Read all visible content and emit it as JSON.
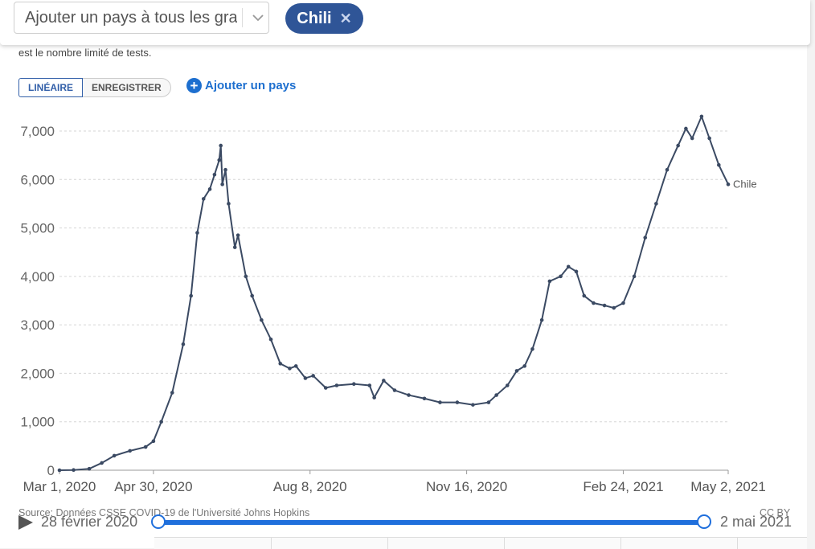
{
  "controls": {
    "country_select_placeholder": "Ajouter un pays à tous les graphiques",
    "selected_country": "Chili",
    "remove_symbol": "✕",
    "note": "est le nombre limité de tests.",
    "scale_linear": "LINÉAIRE",
    "scale_log": "ENREGISTRER",
    "add_country": "Ajouter un pays",
    "add_icon": "plus-circle-icon"
  },
  "footer": {
    "source": "Source: Données CSSE COVID-19 de l'Université Johns Hopkins",
    "license": "CC BY"
  },
  "timeline": {
    "start_label": "28 février 2020",
    "end_label": "2 mai 2021",
    "start_fraction": 0,
    "end_fraction": 1
  },
  "chart_data": {
    "type": "line",
    "title": "",
    "xlabel": "",
    "ylabel": "",
    "x_range": [
      "2020-03-01",
      "2021-05-02"
    ],
    "ylim": [
      0,
      7000
    ],
    "y_ticks": [
      0,
      1000,
      2000,
      3000,
      4000,
      5000,
      6000,
      7000
    ],
    "y_tick_labels": [
      "0",
      "1,000",
      "2,000",
      "3,000",
      "4,000",
      "5,000",
      "6,000",
      "7,000"
    ],
    "x_ticks": [
      "2020-03-01",
      "2020-04-30",
      "2020-08-08",
      "2020-11-16",
      "2021-02-24",
      "2021-05-02"
    ],
    "x_tick_labels": [
      "Mar 1, 2020",
      "Apr 30, 2020",
      "Aug 8, 2020",
      "Nov 16, 2020",
      "Feb 24, 2021",
      "May 2, 2021"
    ],
    "grid": "horizontal dashed",
    "line_color": "#3b4a63",
    "series": [
      {
        "name": "Chile",
        "points": [
          [
            "2020-03-01",
            0
          ],
          [
            "2020-03-10",
            5
          ],
          [
            "2020-03-20",
            30
          ],
          [
            "2020-03-28",
            150
          ],
          [
            "2020-04-05",
            300
          ],
          [
            "2020-04-15",
            400
          ],
          [
            "2020-04-25",
            480
          ],
          [
            "2020-04-30",
            600
          ],
          [
            "2020-05-05",
            1000
          ],
          [
            "2020-05-12",
            1600
          ],
          [
            "2020-05-19",
            2600
          ],
          [
            "2020-05-24",
            3600
          ],
          [
            "2020-05-28",
            4900
          ],
          [
            "2020-06-01",
            5600
          ],
          [
            "2020-06-05",
            5800
          ],
          [
            "2020-06-08",
            6100
          ],
          [
            "2020-06-11",
            6400
          ],
          [
            "2020-06-12",
            6700
          ],
          [
            "2020-06-13",
            5900
          ],
          [
            "2020-06-15",
            6200
          ],
          [
            "2020-06-17",
            5500
          ],
          [
            "2020-06-21",
            4600
          ],
          [
            "2020-06-23",
            4850
          ],
          [
            "2020-06-28",
            4000
          ],
          [
            "2020-07-02",
            3600
          ],
          [
            "2020-07-08",
            3100
          ],
          [
            "2020-07-14",
            2700
          ],
          [
            "2020-07-20",
            2200
          ],
          [
            "2020-07-26",
            2100
          ],
          [
            "2020-07-30",
            2150
          ],
          [
            "2020-08-05",
            1900
          ],
          [
            "2020-08-10",
            1950
          ],
          [
            "2020-08-18",
            1700
          ],
          [
            "2020-08-25",
            1750
          ],
          [
            "2020-09-05",
            1780
          ],
          [
            "2020-09-15",
            1750
          ],
          [
            "2020-09-18",
            1500
          ],
          [
            "2020-09-24",
            1850
          ],
          [
            "2020-10-01",
            1650
          ],
          [
            "2020-10-10",
            1550
          ],
          [
            "2020-10-20",
            1480
          ],
          [
            "2020-10-30",
            1400
          ],
          [
            "2020-11-10",
            1400
          ],
          [
            "2020-11-20",
            1350
          ],
          [
            "2020-11-30",
            1400
          ],
          [
            "2020-12-05",
            1550
          ],
          [
            "2020-12-12",
            1750
          ],
          [
            "2020-12-18",
            2050
          ],
          [
            "2020-12-23",
            2150
          ],
          [
            "2020-12-28",
            2500
          ],
          [
            "2021-01-03",
            3100
          ],
          [
            "2021-01-08",
            3900
          ],
          [
            "2021-01-15",
            4000
          ],
          [
            "2021-01-20",
            4200
          ],
          [
            "2021-01-25",
            4100
          ],
          [
            "2021-01-30",
            3600
          ],
          [
            "2021-02-05",
            3450
          ],
          [
            "2021-02-12",
            3400
          ],
          [
            "2021-02-18",
            3350
          ],
          [
            "2021-02-24",
            3450
          ],
          [
            "2021-03-03",
            4000
          ],
          [
            "2021-03-10",
            4800
          ],
          [
            "2021-03-17",
            5500
          ],
          [
            "2021-03-24",
            6200
          ],
          [
            "2021-03-31",
            6700
          ],
          [
            "2021-04-05",
            7050
          ],
          [
            "2021-04-09",
            6850
          ],
          [
            "2021-04-15",
            7300
          ],
          [
            "2021-04-20",
            6850
          ],
          [
            "2021-04-26",
            6300
          ],
          [
            "2021-05-02",
            5900
          ]
        ]
      }
    ]
  }
}
